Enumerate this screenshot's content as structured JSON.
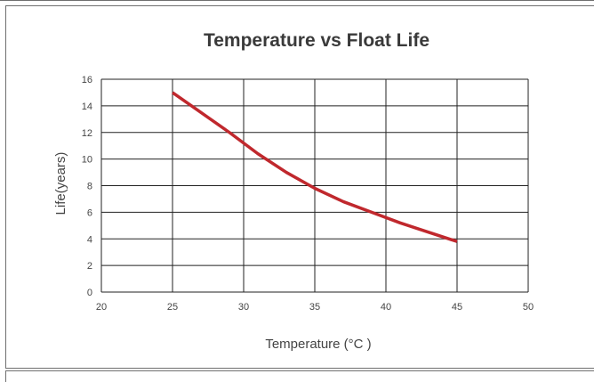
{
  "chart_data": {
    "type": "line",
    "title": "Temperature vs Float Life",
    "xlabel": "Temperature (°C )",
    "ylabel": "Life(years)",
    "xlim": [
      20,
      50
    ],
    "ylim": [
      0,
      16
    ],
    "x_ticks": [
      20,
      25,
      30,
      35,
      40,
      45,
      50
    ],
    "y_ticks": [
      0,
      2,
      4,
      6,
      8,
      10,
      12,
      14,
      16
    ],
    "grid": true,
    "series": [
      {
        "color": "#c0282d",
        "x": [
          25,
          27,
          29,
          31,
          33,
          35,
          37,
          39,
          41,
          43,
          45
        ],
        "y": [
          15.0,
          13.5,
          12.0,
          10.4,
          9.0,
          7.8,
          6.8,
          6.0,
          5.2,
          4.5,
          3.8
        ]
      }
    ]
  }
}
